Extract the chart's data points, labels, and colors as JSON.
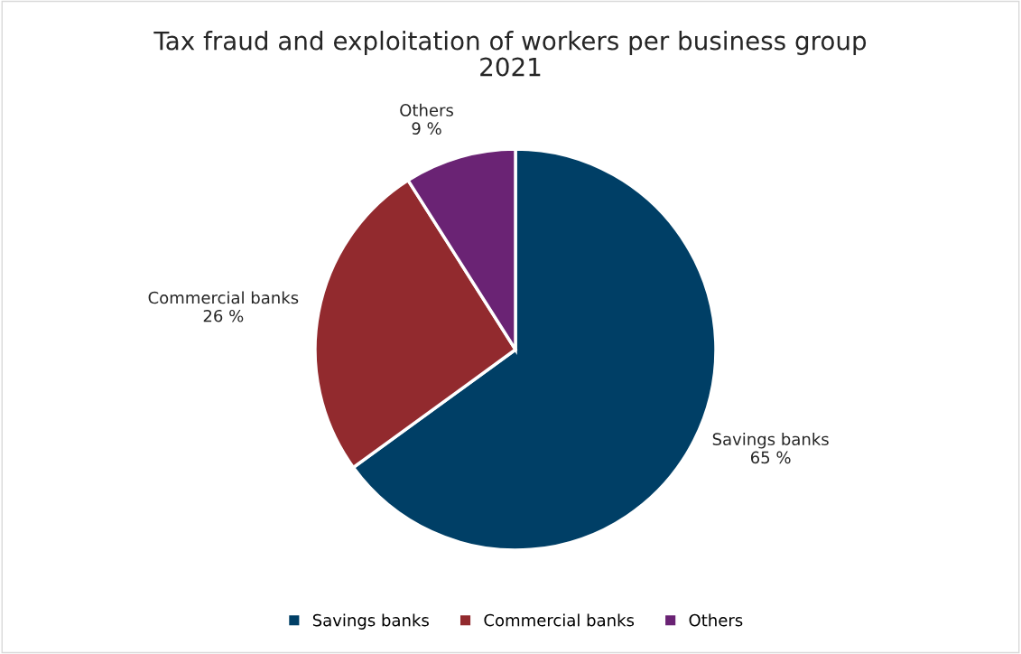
{
  "chart_data": {
    "type": "pie",
    "title": "Tax fraud and exploitation of workers per business group\n2021",
    "categories": [
      "Savings banks",
      "Commercial banks",
      "Others"
    ],
    "values": [
      65,
      26,
      9
    ],
    "value_labels": [
      "65 %",
      "26 %",
      "9 %"
    ],
    "colors": [
      "#003f66",
      "#922a2e",
      "#6a2374"
    ],
    "legend": "bottom"
  }
}
